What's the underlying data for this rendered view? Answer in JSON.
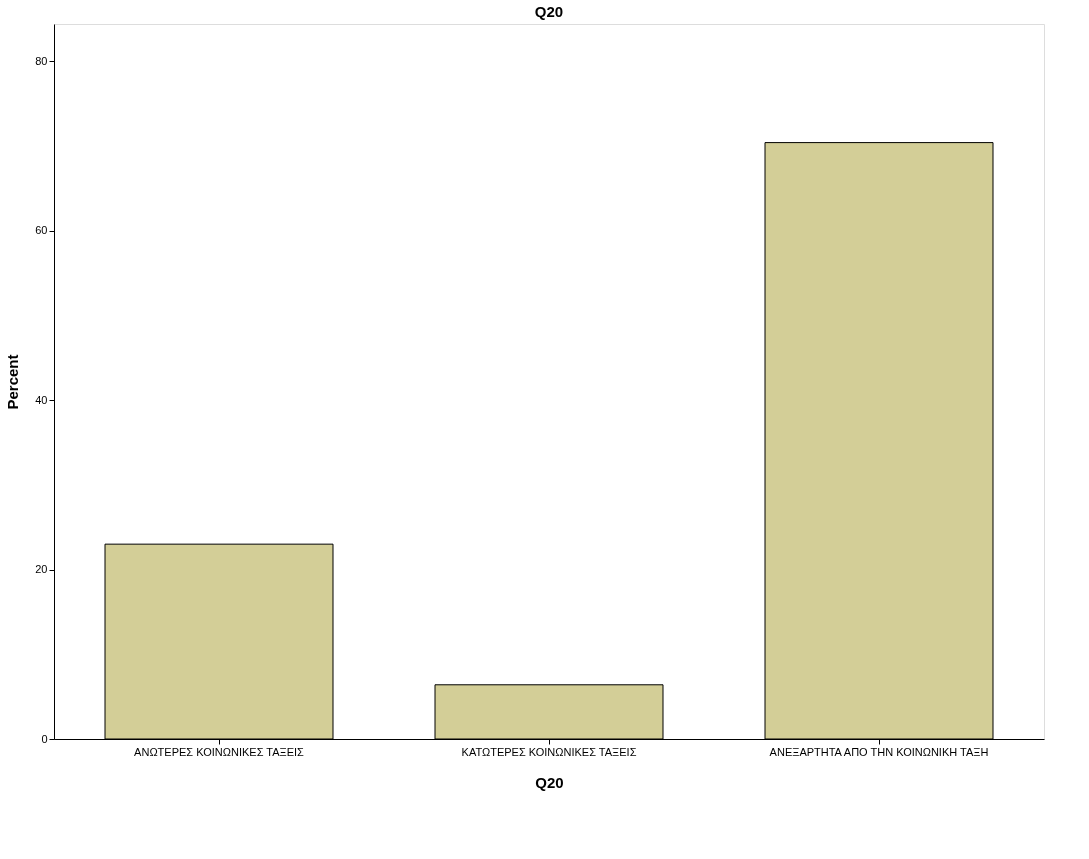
{
  "chart_data": {
    "type": "bar",
    "title": "Q20",
    "xlabel": "Q20",
    "ylabel": "Percent",
    "categories": [
      "ΑΝΩΤΕΡΕΣ ΚΟΙΝΩΝΙΚΕΣ ΤΑΞΕΙΣ",
      "ΚΑΤΩΤΕΡΕΣ ΚΟΙΝΩΝΙΚΕΣ ΤΑΞΕΙΣ",
      "ΑΝΕΞΑΡΤΗΤΑ ΑΠΟ ΤΗΝ ΚΟΙΝΩΝΙΚΗ ΤΑΞΗ"
    ],
    "values": [
      23.0,
      6.4,
      70.4
    ],
    "color": "#d3ce97",
    "ylim": [
      0,
      84.4
    ],
    "yticks": [
      0,
      20,
      40,
      60,
      80
    ],
    "grid": false
  }
}
